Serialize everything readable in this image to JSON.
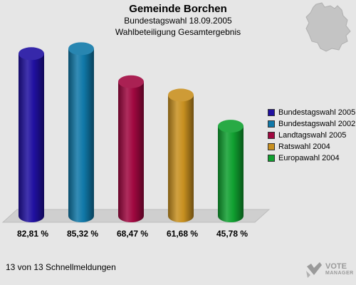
{
  "header": {
    "title": "Gemeinde Borchen",
    "subtitle": "Bundestagswahl 18.09.2005",
    "subtitle2": "Wahlbeteiligung Gesamtergebnis"
  },
  "footer": {
    "text": "13 von 13 Schnellmeldungen"
  },
  "brand": {
    "line1": "VOTE",
    "line2": "MANAGER"
  },
  "chart_data": {
    "type": "bar",
    "title": "Gemeinde Borchen",
    "categories": [
      "Bundestagswahl 2005",
      "Bundestagswahl 2002",
      "Landtagswahl 2005",
      "Ratswahl 2004",
      "Europawahl 2004"
    ],
    "values": [
      82.81,
      85.32,
      68.47,
      61.68,
      45.78
    ],
    "labels": [
      "82,81 %",
      "85,32 %",
      "68,47 %",
      "61,68 %",
      "45,78 %"
    ],
    "colors": [
      "#2010a0",
      "#1078a8",
      "#a00840",
      "#c89020",
      "#10a030"
    ],
    "ylim": [
      0,
      100
    ],
    "legend": "right"
  }
}
